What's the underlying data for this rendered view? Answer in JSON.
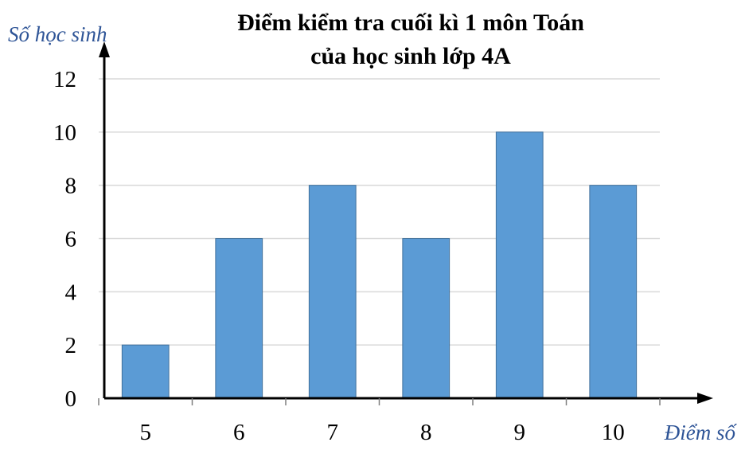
{
  "chart_data": {
    "type": "bar",
    "title_lines": [
      "Điểm kiểm tra cuối kì 1 môn Toán",
      "của học sinh lớp 4A"
    ],
    "ylabel": "Số học sinh",
    "xlabel": "Điểm số",
    "categories": [
      "5",
      "6",
      "7",
      "8",
      "9",
      "10"
    ],
    "values": [
      2,
      6,
      8,
      6,
      10,
      8
    ],
    "ylim": [
      0,
      12
    ],
    "yticks": [
      0,
      2,
      4,
      6,
      8,
      10,
      12
    ],
    "grid": true,
    "colors": {
      "bar": "#5b9bd5",
      "bar_edge": "#41719c",
      "grid": "#d9d9d9",
      "axis": "#000000",
      "axis_label": "#2f5597"
    }
  }
}
